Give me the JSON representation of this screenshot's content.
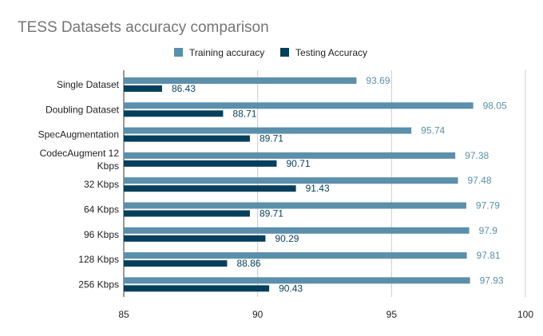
{
  "chart_data": {
    "type": "bar",
    "orientation": "horizontal",
    "title": "TESS Datasets accuracy comparison",
    "categories": [
      [
        "Single Dataset"
      ],
      [
        "Doubling Dataset"
      ],
      [
        "SpecAugmentation"
      ],
      [
        "CodecAugment 12",
        "Kbps"
      ],
      [
        "32 Kbps"
      ],
      [
        "64 Kbps"
      ],
      [
        "96 Kbps"
      ],
      [
        "128 Kbps"
      ],
      [
        "256 Kbps"
      ]
    ],
    "series": [
      {
        "name": "Training accuracy",
        "color": "#5b8fab",
        "values": [
          93.69,
          98.05,
          95.74,
          97.38,
          97.48,
          97.79,
          97.9,
          97.81,
          97.93
        ]
      },
      {
        "name": "Testing Accuracy",
        "color": "#063f5c",
        "values": [
          86.43,
          88.71,
          89.71,
          90.71,
          91.43,
          89.71,
          90.29,
          88.86,
          90.43
        ]
      }
    ],
    "xlim": [
      85,
      100
    ],
    "xticks": [
      85,
      90,
      95,
      100
    ],
    "grid": true,
    "legend_position": "top"
  }
}
